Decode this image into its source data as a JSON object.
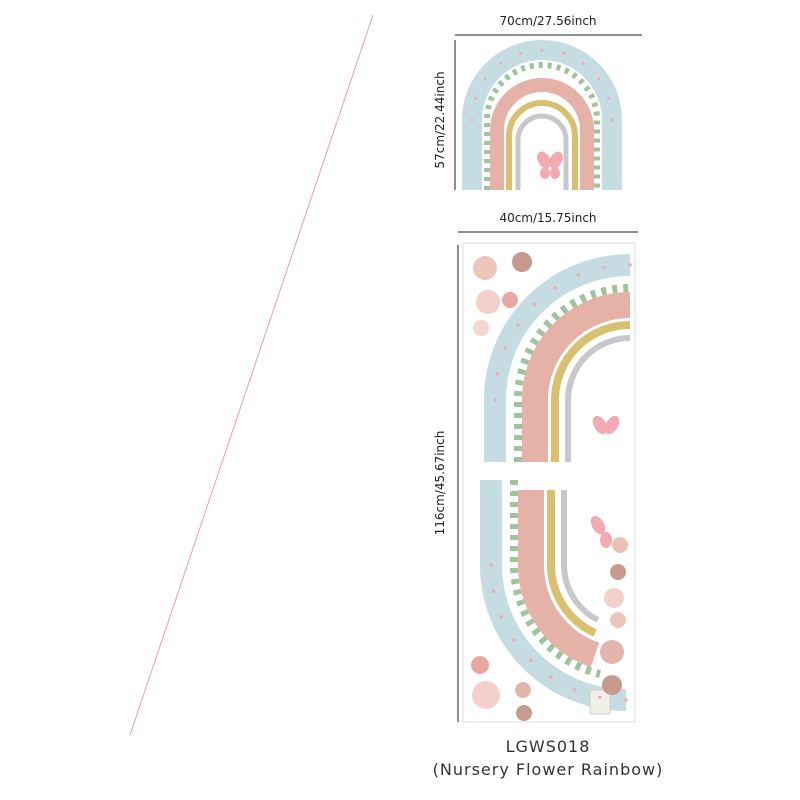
{
  "top_sticker": {
    "width_label": "70cm/27.56inch",
    "height_label": "57cm/22.44inch"
  },
  "bottom_sheet": {
    "width_label": "40cm/15.75inch",
    "height_label": "116cm/45.67inch"
  },
  "product": {
    "code": "LGWS018",
    "name": "(Nursery Flower Rainbow)"
  }
}
